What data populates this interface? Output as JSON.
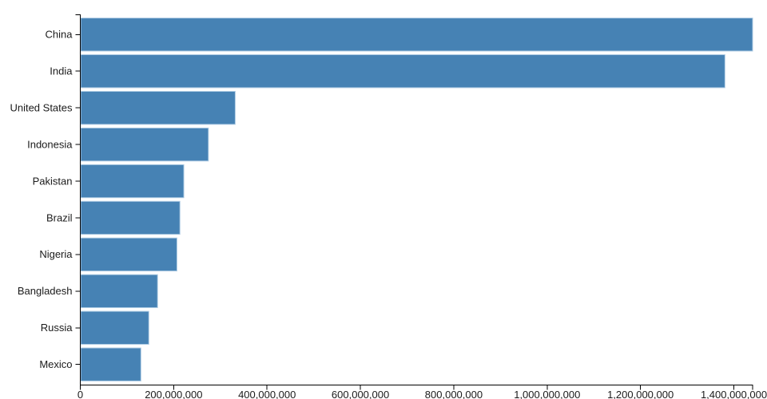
{
  "chart_data": {
    "type": "bar",
    "orientation": "horizontal",
    "title": "",
    "xlabel": "",
    "ylabel": "",
    "categories": [
      "China",
      "India",
      "United States",
      "Indonesia",
      "Pakistan",
      "Brazil",
      "Nigeria",
      "Bangladesh",
      "Russia",
      "Mexico"
    ],
    "values": [
      1439323776,
      1380004385,
      331002651,
      273523615,
      220892340,
      212559417,
      206139589,
      164689383,
      145934462,
      128932753
    ],
    "xlim": [
      0,
      1439323776
    ],
    "x_tick_values": [
      0,
      200000000,
      400000000,
      600000000,
      800000000,
      1000000000,
      1200000000,
      1400000000
    ],
    "x_tick_labels": [
      "0",
      "200,000,000",
      "400,000,000",
      "600,000,000",
      "800,000,000",
      "1,000,000,000",
      "1,200,000,000",
      "1,400,000,000"
    ],
    "grid": false,
    "legend": false
  },
  "colors": {
    "bar_fill": "#4682b4",
    "bar_stroke": "#aecbe3",
    "axis_line": "#000000",
    "tick_text": "#1b1b1b",
    "background": "#ffffff"
  }
}
